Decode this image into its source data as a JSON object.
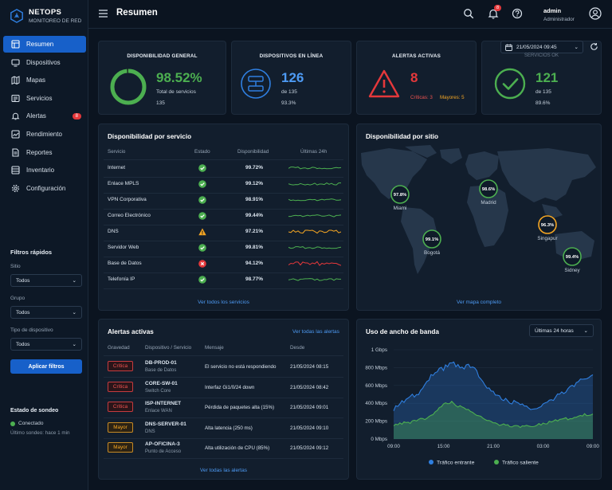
{
  "app": {
    "name": "NETOPS",
    "subtitle": "MONITOREO DE RED"
  },
  "header": {
    "title": "Resumen",
    "notifications": "8",
    "user_name": "admin",
    "user_role": "Administrador"
  },
  "nav": [
    {
      "label": "Resumen",
      "icon": "dashboard-icon",
      "active": true
    },
    {
      "label": "Dispositivos",
      "icon": "devices-icon"
    },
    {
      "label": "Mapas",
      "icon": "map-icon"
    },
    {
      "label": "Servicios",
      "icon": "services-icon"
    },
    {
      "label": "Alertas",
      "icon": "bell-icon",
      "badge": "8"
    },
    {
      "label": "Rendimiento",
      "icon": "performance-icon"
    },
    {
      "label": "Reportes",
      "icon": "reports-icon"
    },
    {
      "label": "Inventario",
      "icon": "inventory-icon"
    },
    {
      "label": "Configuración",
      "icon": "gear-icon"
    }
  ],
  "quick_filters": {
    "title": "Filtros rápidos",
    "site_label": "Sitio",
    "site_value": "Todos",
    "group_label": "Grupo",
    "group_value": "Todos",
    "type_label": "Tipo de dispositivo",
    "type_value": "Todos",
    "apply": "Aplicar filtros"
  },
  "probe": {
    "title": "Estado de sondeo",
    "status": "Conectado",
    "last": "Último sondeo: hace 1 min"
  },
  "kpis": {
    "availability": {
      "title": "DISPONIBILIDAD GENERAL",
      "value": "98.52%",
      "label": "Total de servicios",
      "count": "135",
      "fraction": 0.9852
    },
    "online": {
      "title": "DISPOSITIVOS EN LÍNEA",
      "value": "126",
      "of": "de 135",
      "pct": "93.3%"
    },
    "alerts": {
      "title": "ALERTAS ACTIVAS",
      "value": "8",
      "critical": "Críticas: 3",
      "major": "Mayores: 5"
    },
    "ok": {
      "datetime": "21/05/2024 09:45",
      "title": "SERVICIOS OK",
      "value": "121",
      "of": "de 135",
      "pct": "89.6%"
    }
  },
  "services": {
    "title": "Disponibilidad por servicio",
    "headers": [
      "Servicio",
      "Estado",
      "Disponibilidad",
      "Últimas 24h"
    ],
    "rows": [
      {
        "name": "Internet",
        "status": "ok",
        "value": "99.72%",
        "color": "#4caf50"
      },
      {
        "name": "Enlace MPLS",
        "status": "ok",
        "value": "99.12%",
        "color": "#4caf50"
      },
      {
        "name": "VPN Corporativa",
        "status": "ok",
        "value": "98.91%",
        "color": "#4caf50"
      },
      {
        "name": "Correo Electrónico",
        "status": "ok",
        "value": "99.44%",
        "color": "#4caf50"
      },
      {
        "name": "DNS",
        "status": "warn",
        "value": "97.21%",
        "color": "#f5a623"
      },
      {
        "name": "Servidor Web",
        "status": "ok",
        "value": "99.81%",
        "color": "#4caf50"
      },
      {
        "name": "Base de Datos",
        "status": "error",
        "value": "94.12%",
        "color": "#e5383b"
      },
      {
        "name": "Telefonía IP",
        "status": "ok",
        "value": "98.77%",
        "color": "#4caf50"
      }
    ],
    "link": "Ver todos los servicios"
  },
  "sites": {
    "title": "Disponibilidad por sitio",
    "items": [
      {
        "name": "Miami",
        "value": "97.8%",
        "color": "#4caf50"
      },
      {
        "name": "Madrid",
        "value": "98.6%",
        "color": "#4caf50"
      },
      {
        "name": "Bogotá",
        "value": "99.1%",
        "color": "#4caf50"
      },
      {
        "name": "Singapur",
        "value": "96.3%",
        "color": "#f5a623"
      },
      {
        "name": "Sidney",
        "value": "99.4%",
        "color": "#4caf50"
      }
    ],
    "link": "Ver mapa completo"
  },
  "alerts": {
    "title": "Alertas activas",
    "top_link": "Ver todas las alertas",
    "headers": [
      "Gravedad",
      "Dispositivo / Servicio",
      "Mensaje",
      "Desde"
    ],
    "rows": [
      {
        "severity": "Crítica",
        "level": "crit",
        "device": "DB-PROD-01",
        "service": "Base de Datos",
        "message": "El servicio no está respondiendo",
        "since": "21/05/2024 08:15"
      },
      {
        "severity": "Crítica",
        "level": "crit",
        "device": "CORE-SW-01",
        "service": "Switch Core",
        "message": "Interfaz Gi1/0/24 down",
        "since": "21/05/2024 08:42"
      },
      {
        "severity": "Crítica",
        "level": "crit",
        "device": "ISP-INTERNET",
        "service": "Enlace WAN",
        "message": "Pérdida de paquetes alta (15%)",
        "since": "21/05/2024 09:01"
      },
      {
        "severity": "Mayor",
        "level": "may",
        "device": "DNS-SERVER-01",
        "service": "DNS",
        "message": "Alta latencia (250 ms)",
        "since": "21/05/2024 09:10"
      },
      {
        "severity": "Mayor",
        "level": "may",
        "device": "AP-OFICINA-3",
        "service": "Punto de Acceso",
        "message": "Alta utilización de CPU (85%)",
        "since": "21/05/2024 09:12"
      }
    ],
    "bottom_link": "Ver todas las alertas"
  },
  "bandwidth": {
    "title": "Uso de ancho de banda",
    "range": "Últimas 24 horas",
    "legend_in": "Tráfico entrante",
    "legend_out": "Tráfico saliente",
    "color_in": "#2f7fe0",
    "color_out": "#4caf50"
  },
  "chart_data": {
    "type": "area",
    "x": [
      "09:00",
      "10:00",
      "11:00",
      "12:00",
      "13:00",
      "14:00",
      "15:00",
      "16:00",
      "17:00",
      "18:00",
      "19:00",
      "20:00",
      "21:00",
      "22:00",
      "23:00",
      "00:00",
      "01:00",
      "02:00",
      "03:00",
      "04:00",
      "05:00",
      "06:00",
      "07:00",
      "08:00",
      "09:00"
    ],
    "x_ticks": [
      "09:00",
      "15:00",
      "21:00",
      "03:00",
      "09:00"
    ],
    "y_ticks": [
      "0 Mbps",
      "200 Mbps",
      "400 Mbps",
      "600 Mbps",
      "800 Mbps",
      "1 Gbps"
    ],
    "ylim": [
      0,
      1000
    ],
    "series": [
      {
        "name": "Tráfico entrante",
        "values": [
          340,
          420,
          470,
          520,
          640,
          760,
          790,
          870,
          800,
          820,
          760,
          610,
          520,
          450,
          420,
          400,
          380,
          330,
          380,
          440,
          500,
          560,
          620,
          680,
          720
        ]
      },
      {
        "name": "Tráfico saliente",
        "values": [
          160,
          180,
          190,
          210,
          240,
          300,
          390,
          410,
          360,
          330,
          280,
          220,
          180,
          160,
          150,
          140,
          140,
          150,
          170,
          200,
          220,
          230,
          250,
          270,
          280
        ]
      }
    ]
  }
}
